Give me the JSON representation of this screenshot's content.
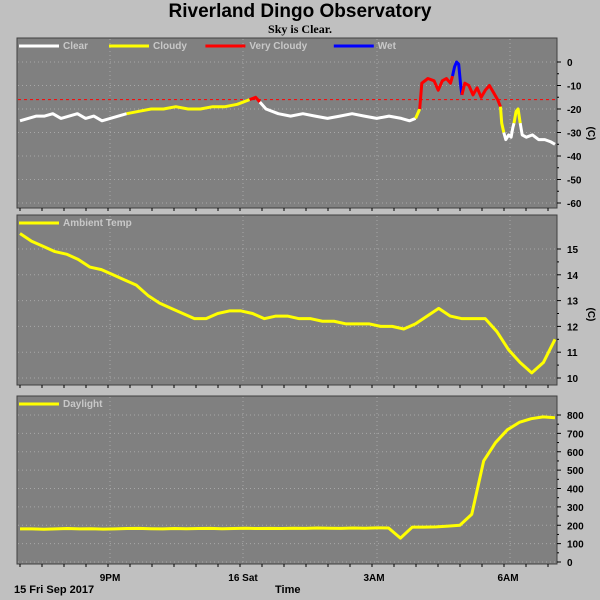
{
  "header": {
    "title": "Riverland Dingo Observatory",
    "subtitle": "Sky is Clear."
  },
  "footer": {
    "date_label": "15 Fri Sep 2017",
    "axis_label": "Time"
  },
  "colors": {
    "background": "#c0c0c0",
    "panel": "#808080",
    "clear": "#ffffff",
    "cloudy": "#ffff00",
    "very_cloudy": "#ff0000",
    "wet": "#0000ff",
    "threshold": "#ff0000"
  },
  "chart_data": [
    {
      "type": "line",
      "title": "",
      "ylabel": "(C)",
      "ylim": [
        -60,
        5
      ],
      "yticks": [
        "0",
        "-10",
        "-20",
        "-30",
        "-40",
        "-50",
        "-60"
      ],
      "xticks": [
        "9PM",
        "16 Sat",
        "3AM",
        "6AM"
      ],
      "xlim": [
        -2.0,
        8.25
      ],
      "grid": true,
      "threshold": -16,
      "legend": [
        {
          "name": "Clear",
          "color": "#ffffff"
        },
        {
          "name": "Cloudy",
          "color": "#ffff00"
        },
        {
          "name": "Very Cloudy",
          "color": "#ff0000"
        },
        {
          "name": "Wet",
          "color": "#0000ff"
        }
      ],
      "series": [
        {
          "name": "Clear",
          "color": "#ffffff",
          "x": [
            -2.0,
            -1.7,
            -1.4,
            -1.1,
            -0.8,
            -0.5,
            -0.2,
            0.1,
            0.4,
            0.7,
            1.0,
            1.3,
            1.6,
            1.9,
            2.2,
            2.5,
            2.8,
            3.1,
            3.4,
            3.7,
            4.0,
            4.3,
            4.6,
            4.9,
            5.2,
            5.5,
            5.8,
            6.1,
            6.4,
            6.7,
            7.0,
            7.3,
            7.6,
            7.9,
            8.2
          ],
          "y": [
            -25,
            -24,
            -23,
            -24,
            -22,
            -24,
            -22,
            -23,
            -25,
            -23,
            -22,
            -23,
            -21,
            -20,
            -21,
            -22,
            -20,
            -20,
            -19,
            -18,
            -16,
            -17,
            -20,
            -22,
            -23,
            -22,
            -23,
            -24,
            -23,
            -24,
            -22,
            -25,
            -23,
            -22,
            -24
          ]
        },
        {
          "name": "Cloudy",
          "color": "#ffff00",
          "x": [
            -0.1,
            0.2,
            0.5,
            0.8,
            1.1,
            1.4,
            1.7,
            2.0,
            2.3,
            2.6,
            2.85
          ],
          "y": [
            -22,
            -21,
            -20,
            -20,
            -19,
            -20,
            -20,
            -20,
            -19,
            -18,
            -17
          ]
        },
        {
          "name": "Very Cloudy",
          "color": "#ff0000",
          "x": [
            2.9,
            3.0,
            3.1
          ],
          "y": [
            -17,
            -15,
            -17
          ]
        },
        {
          "name": "Clear",
          "color": "#ffffff",
          "x": [
            3.15,
            3.5,
            3.9,
            4.3,
            4.7,
            5.1,
            5.5,
            5.9,
            6.3,
            6.6,
            6.9,
            7.2,
            7.6,
            7.9,
            8.1,
            8.25
          ],
          "y": [
            -19,
            -22,
            -24,
            -22,
            -24,
            -23,
            -24,
            -25,
            -22,
            -23,
            -24,
            -25,
            -24,
            -23,
            -25,
            -24
          ]
        },
        {
          "name": "Cloudy",
          "color": "#ffff00",
          "x": [
            8.2,
            8.4,
            8.6
          ],
          "y": [
            -24,
            -20,
            -18
          ]
        }
      ]
    },
    {
      "type": "line",
      "title": "",
      "ylabel": "(C)",
      "ylim": [
        9.5,
        16
      ],
      "yticks": [
        "15",
        "14",
        "13",
        "12",
        "11",
        "10"
      ],
      "xticks": [
        "9PM",
        "16 Sat",
        "3AM",
        "6AM"
      ],
      "grid": true,
      "legend": [
        {
          "name": "Ambient Temp",
          "color": "#ffff00"
        }
      ],
      "series": [
        {
          "name": "Ambient Temp",
          "color": "#ffff00",
          "values": [
            15.6,
            15.3,
            15.1,
            14.9,
            14.8,
            14.6,
            14.3,
            14.2,
            14.0,
            13.8,
            13.6,
            13.2,
            12.9,
            12.7,
            12.5,
            12.3,
            12.3,
            12.5,
            12.6,
            12.6,
            12.5,
            12.3,
            12.4,
            12.4,
            12.3,
            12.3,
            12.2,
            12.2,
            12.1,
            12.1,
            12.1,
            12.0,
            12.0,
            11.9,
            12.1,
            12.4,
            12.7,
            12.4,
            12.3,
            12.3,
            12.3,
            11.8,
            11.1,
            10.6,
            10.2,
            10.6,
            11.5
          ]
        }
      ]
    },
    {
      "type": "line",
      "title": "",
      "ylabel": "",
      "ylim": [
        0,
        850
      ],
      "yticks": [
        "800",
        "700",
        "600",
        "500",
        "400",
        "300",
        "200",
        "100",
        "0"
      ],
      "xticks": [
        "9PM",
        "16 Sat",
        "3AM",
        "6AM"
      ],
      "grid": true,
      "legend": [
        {
          "name": "Daylight",
          "color": "#ffff00"
        }
      ],
      "series": [
        {
          "name": "Daylight",
          "color": "#ffff00",
          "values": [
            180,
            180,
            178,
            180,
            182,
            180,
            181,
            179,
            180,
            182,
            183,
            181,
            180,
            182,
            181,
            182,
            183,
            181,
            182,
            184,
            182,
            183,
            182,
            184,
            183,
            185,
            184,
            183,
            185,
            184,
            186,
            185,
            130,
            190,
            190,
            191,
            195,
            200,
            260,
            550,
            650,
            720,
            760,
            780,
            790,
            785
          ]
        }
      ]
    }
  ]
}
